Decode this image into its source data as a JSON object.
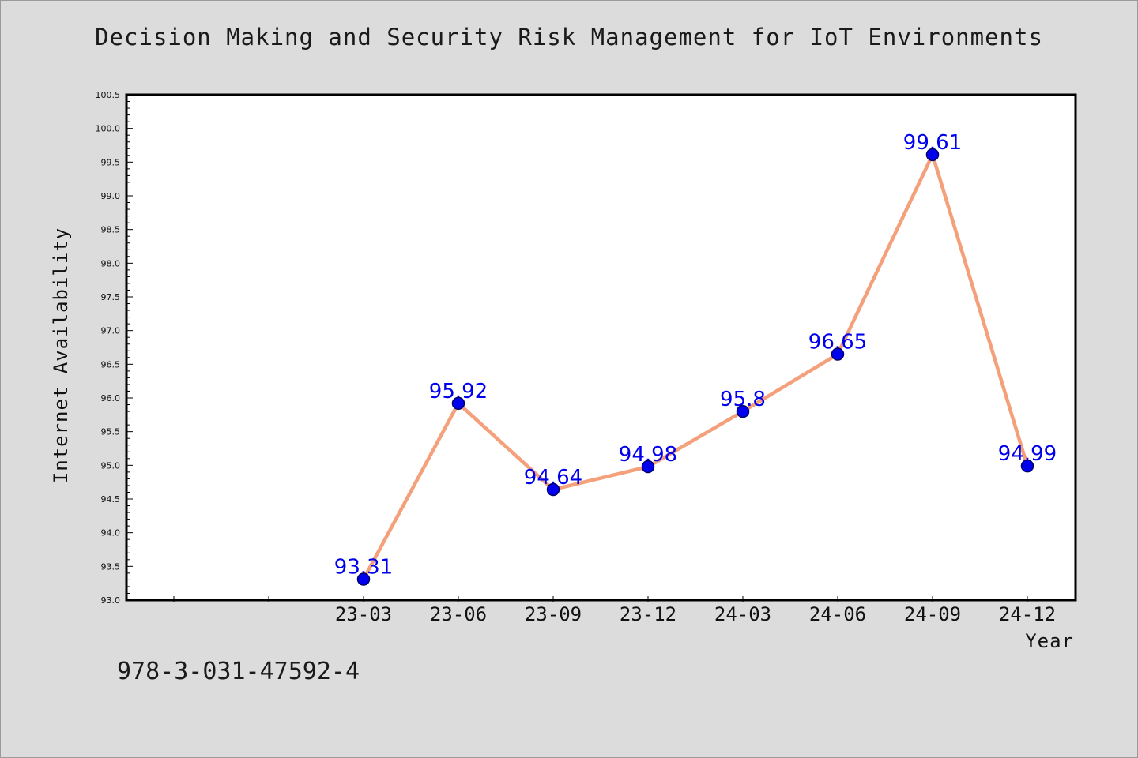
{
  "chart_data": {
    "type": "line",
    "title": "Decision Making and Security Risk Management for IoT Environments",
    "xlabel": "Year",
    "ylabel": "Internet Availability",
    "categories": [
      "23-03",
      "23-06",
      "23-09",
      "23-12",
      "24-03",
      "24-06",
      "24-09",
      "24-12"
    ],
    "series": [
      {
        "values": [
          93.31,
          95.92,
          94.64,
          94.98,
          95.8,
          96.65,
          99.61,
          94.99
        ]
      }
    ],
    "data_labels": [
      "93.31",
      "95.92",
      "94.64",
      "94.98",
      "95.8",
      "96.65",
      "99.61",
      "94.99"
    ],
    "ylim": [
      93.0,
      100.5
    ],
    "yticks": [
      "93.0",
      "93.5",
      "94.0",
      "94.5",
      "95.0",
      "95.5",
      "96.0",
      "96.5",
      "97.0",
      "97.5",
      "98.0",
      "98.5",
      "99.0",
      "99.5",
      "100.0",
      "100.5"
    ],
    "grid": false,
    "colors": {
      "line": "#f4a07a",
      "marker": "#0000ee",
      "label": "#0000ee",
      "background": "#dcdcdc",
      "plot": "#ffffff"
    }
  },
  "footer": {
    "isbn": "978-3-031-47592-4"
  }
}
